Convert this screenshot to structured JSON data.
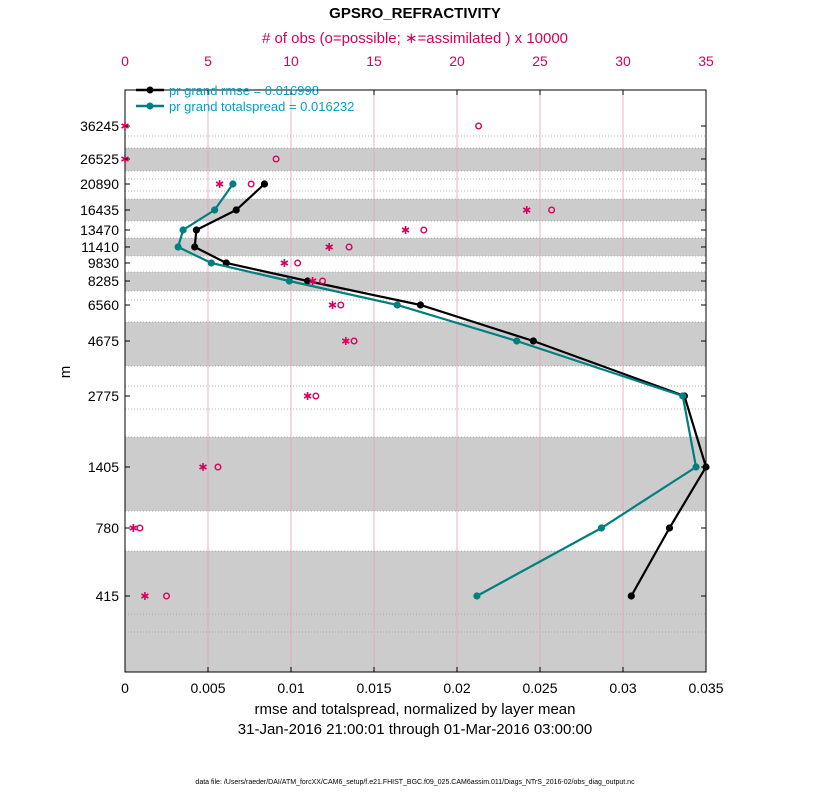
{
  "chart_data": {
    "type": "line",
    "title": "GPSRO_REFRACTIVITY",
    "top_axis_label": "# of obs (o=possible; ∗=assimilated ) x 10000",
    "xlabel": "rmse and totalspread, normalized by layer mean",
    "date_range": "31-Jan-2016 21:00:01 through 01-Mar-2016 03:00:00",
    "ylabel": "m",
    "footer": "data file: /Users/raeder/DAI/ATM_forcXX/CAM6_setup/f.e21.FHIST_BGC.f09_025.CAM6assim.011/Diags_NTrS_2016-02/obs_diag_output.nc",
    "xlim": [
      0,
      0.035
    ],
    "top_xlim": [
      0,
      35
    ],
    "x_ticks": [
      "0",
      "0.005",
      "0.01",
      "0.015",
      "0.02",
      "0.025",
      "0.03",
      "0.035"
    ],
    "top_ticks": [
      "0",
      "5",
      "10",
      "15",
      "20",
      "25",
      "30",
      "35"
    ],
    "y_ticks": [
      "36245",
      "26525",
      "20890",
      "16435",
      "13470",
      "11410",
      "9830",
      "8285",
      "6560",
      "4675",
      "2775",
      "1405",
      "780",
      "415"
    ],
    "legend": [
      "pr grand rmse = 0.016998",
      "pr grand totalspread = 0.016232"
    ],
    "series": [
      {
        "name": "rmse",
        "color": "#000000",
        "values": [
          null,
          null,
          0.0084,
          0.0067,
          0.0043,
          0.0042,
          0.0061,
          0.011,
          0.0178,
          0.0246,
          0.0337,
          0.035,
          0.0328,
          0.0305
        ]
      },
      {
        "name": "totalspread",
        "color": "#007f7f",
        "values": [
          null,
          null,
          0.0065,
          0.0054,
          0.0035,
          0.0032,
          0.0052,
          0.0099,
          0.0164,
          0.0236,
          0.0336,
          0.0344,
          0.0287,
          0.0212
        ]
      }
    ],
    "obs_possible_x10000": [
      21.3,
      9.1,
      7.6,
      25.7,
      18.0,
      13.5,
      10.4,
      11.9,
      13.0,
      13.8,
      11.5,
      5.6,
      0.9,
      2.5
    ],
    "obs_assimilated_x10000": [
      0.0,
      0.0,
      5.7,
      24.2,
      16.9,
      12.3,
      9.6,
      11.3,
      12.5,
      13.3,
      11.0,
      4.7,
      0.5,
      1.2
    ],
    "obs_color": "#d6005e",
    "band_color": "#cccccc"
  }
}
